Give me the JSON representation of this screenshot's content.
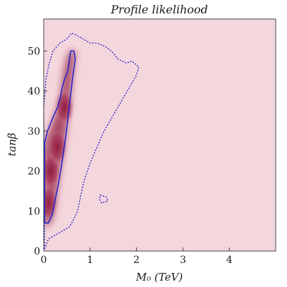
{
  "chart_data": {
    "type": "heatmap",
    "title": "Profile likelihood",
    "xlabel": "M₀ (TeV)",
    "ylabel": "tanβ",
    "xlim": [
      0,
      5
    ],
    "ylim": [
      0,
      58
    ],
    "xticks": [
      "0",
      "1",
      "2",
      "3",
      "4"
    ],
    "yticks": [
      "0",
      "10",
      "20",
      "30",
      "40",
      "50"
    ],
    "xtick_values": [
      0,
      1,
      2,
      3,
      4
    ],
    "ytick_values": [
      0,
      10,
      20,
      30,
      40,
      50
    ],
    "background_color": "#f4d6dd",
    "peak_color": "#8e1a3e",
    "contour_color": "#2222cc",
    "high_likelihood_region": [
      [
        0.0,
        7
      ],
      [
        0.08,
        6
      ],
      [
        0.18,
        8
      ],
      [
        0.25,
        12
      ],
      [
        0.32,
        18
      ],
      [
        0.4,
        24
      ],
      [
        0.48,
        30
      ],
      [
        0.55,
        36
      ],
      [
        0.6,
        42
      ],
      [
        0.65,
        47
      ],
      [
        0.68,
        50
      ],
      [
        0.55,
        50
      ],
      [
        0.45,
        46
      ],
      [
        0.38,
        40
      ],
      [
        0.3,
        36
      ],
      [
        0.22,
        33
      ],
      [
        0.12,
        30
      ],
      [
        0.05,
        28
      ],
      [
        0.0,
        24
      ]
    ],
    "contour_68": [
      [
        0.02,
        7
      ],
      [
        0.1,
        7
      ],
      [
        0.18,
        9
      ],
      [
        0.25,
        13
      ],
      [
        0.32,
        17
      ],
      [
        0.38,
        21
      ],
      [
        0.43,
        25
      ],
      [
        0.48,
        29
      ],
      [
        0.55,
        36
      ],
      [
        0.62,
        43
      ],
      [
        0.68,
        48
      ],
      [
        0.65,
        50
      ],
      [
        0.58,
        50
      ],
      [
        0.52,
        45
      ],
      [
        0.45,
        43
      ],
      [
        0.4,
        41
      ],
      [
        0.35,
        38
      ],
      [
        0.3,
        36
      ],
      [
        0.22,
        34
      ],
      [
        0.15,
        32
      ],
      [
        0.08,
        30
      ],
      [
        0.02,
        27
      ]
    ],
    "contour_95": [
      [
        0.02,
        0.5
      ],
      [
        0.1,
        3
      ],
      [
        0.25,
        4
      ],
      [
        0.4,
        5
      ],
      [
        0.55,
        6
      ],
      [
        0.65,
        8
      ],
      [
        0.73,
        10
      ],
      [
        0.8,
        14
      ],
      [
        0.88,
        18
      ],
      [
        1.0,
        22
      ],
      [
        1.15,
        26
      ],
      [
        1.3,
        30
      ],
      [
        1.45,
        33
      ],
      [
        1.6,
        36
      ],
      [
        1.75,
        39
      ],
      [
        1.85,
        41
      ],
      [
        2.0,
        44
      ],
      [
        2.05,
        46
      ],
      [
        1.9,
        47.5
      ],
      [
        1.78,
        47
      ],
      [
        1.6,
        48
      ],
      [
        1.5,
        49.5
      ],
      [
        1.35,
        51
      ],
      [
        1.15,
        52
      ],
      [
        1.0,
        52
      ],
      [
        0.85,
        53
      ],
      [
        0.7,
        54
      ],
      [
        0.6,
        54.5
      ],
      [
        0.5,
        53
      ],
      [
        0.35,
        52
      ],
      [
        0.2,
        50
      ],
      [
        0.12,
        47
      ],
      [
        0.05,
        43
      ],
      [
        0.0,
        36
      ]
    ],
    "contour_95_island": [
      [
        1.22,
        14
      ],
      [
        1.35,
        13.5
      ],
      [
        1.38,
        12.5
      ],
      [
        1.25,
        12
      ],
      [
        1.2,
        13
      ]
    ]
  }
}
